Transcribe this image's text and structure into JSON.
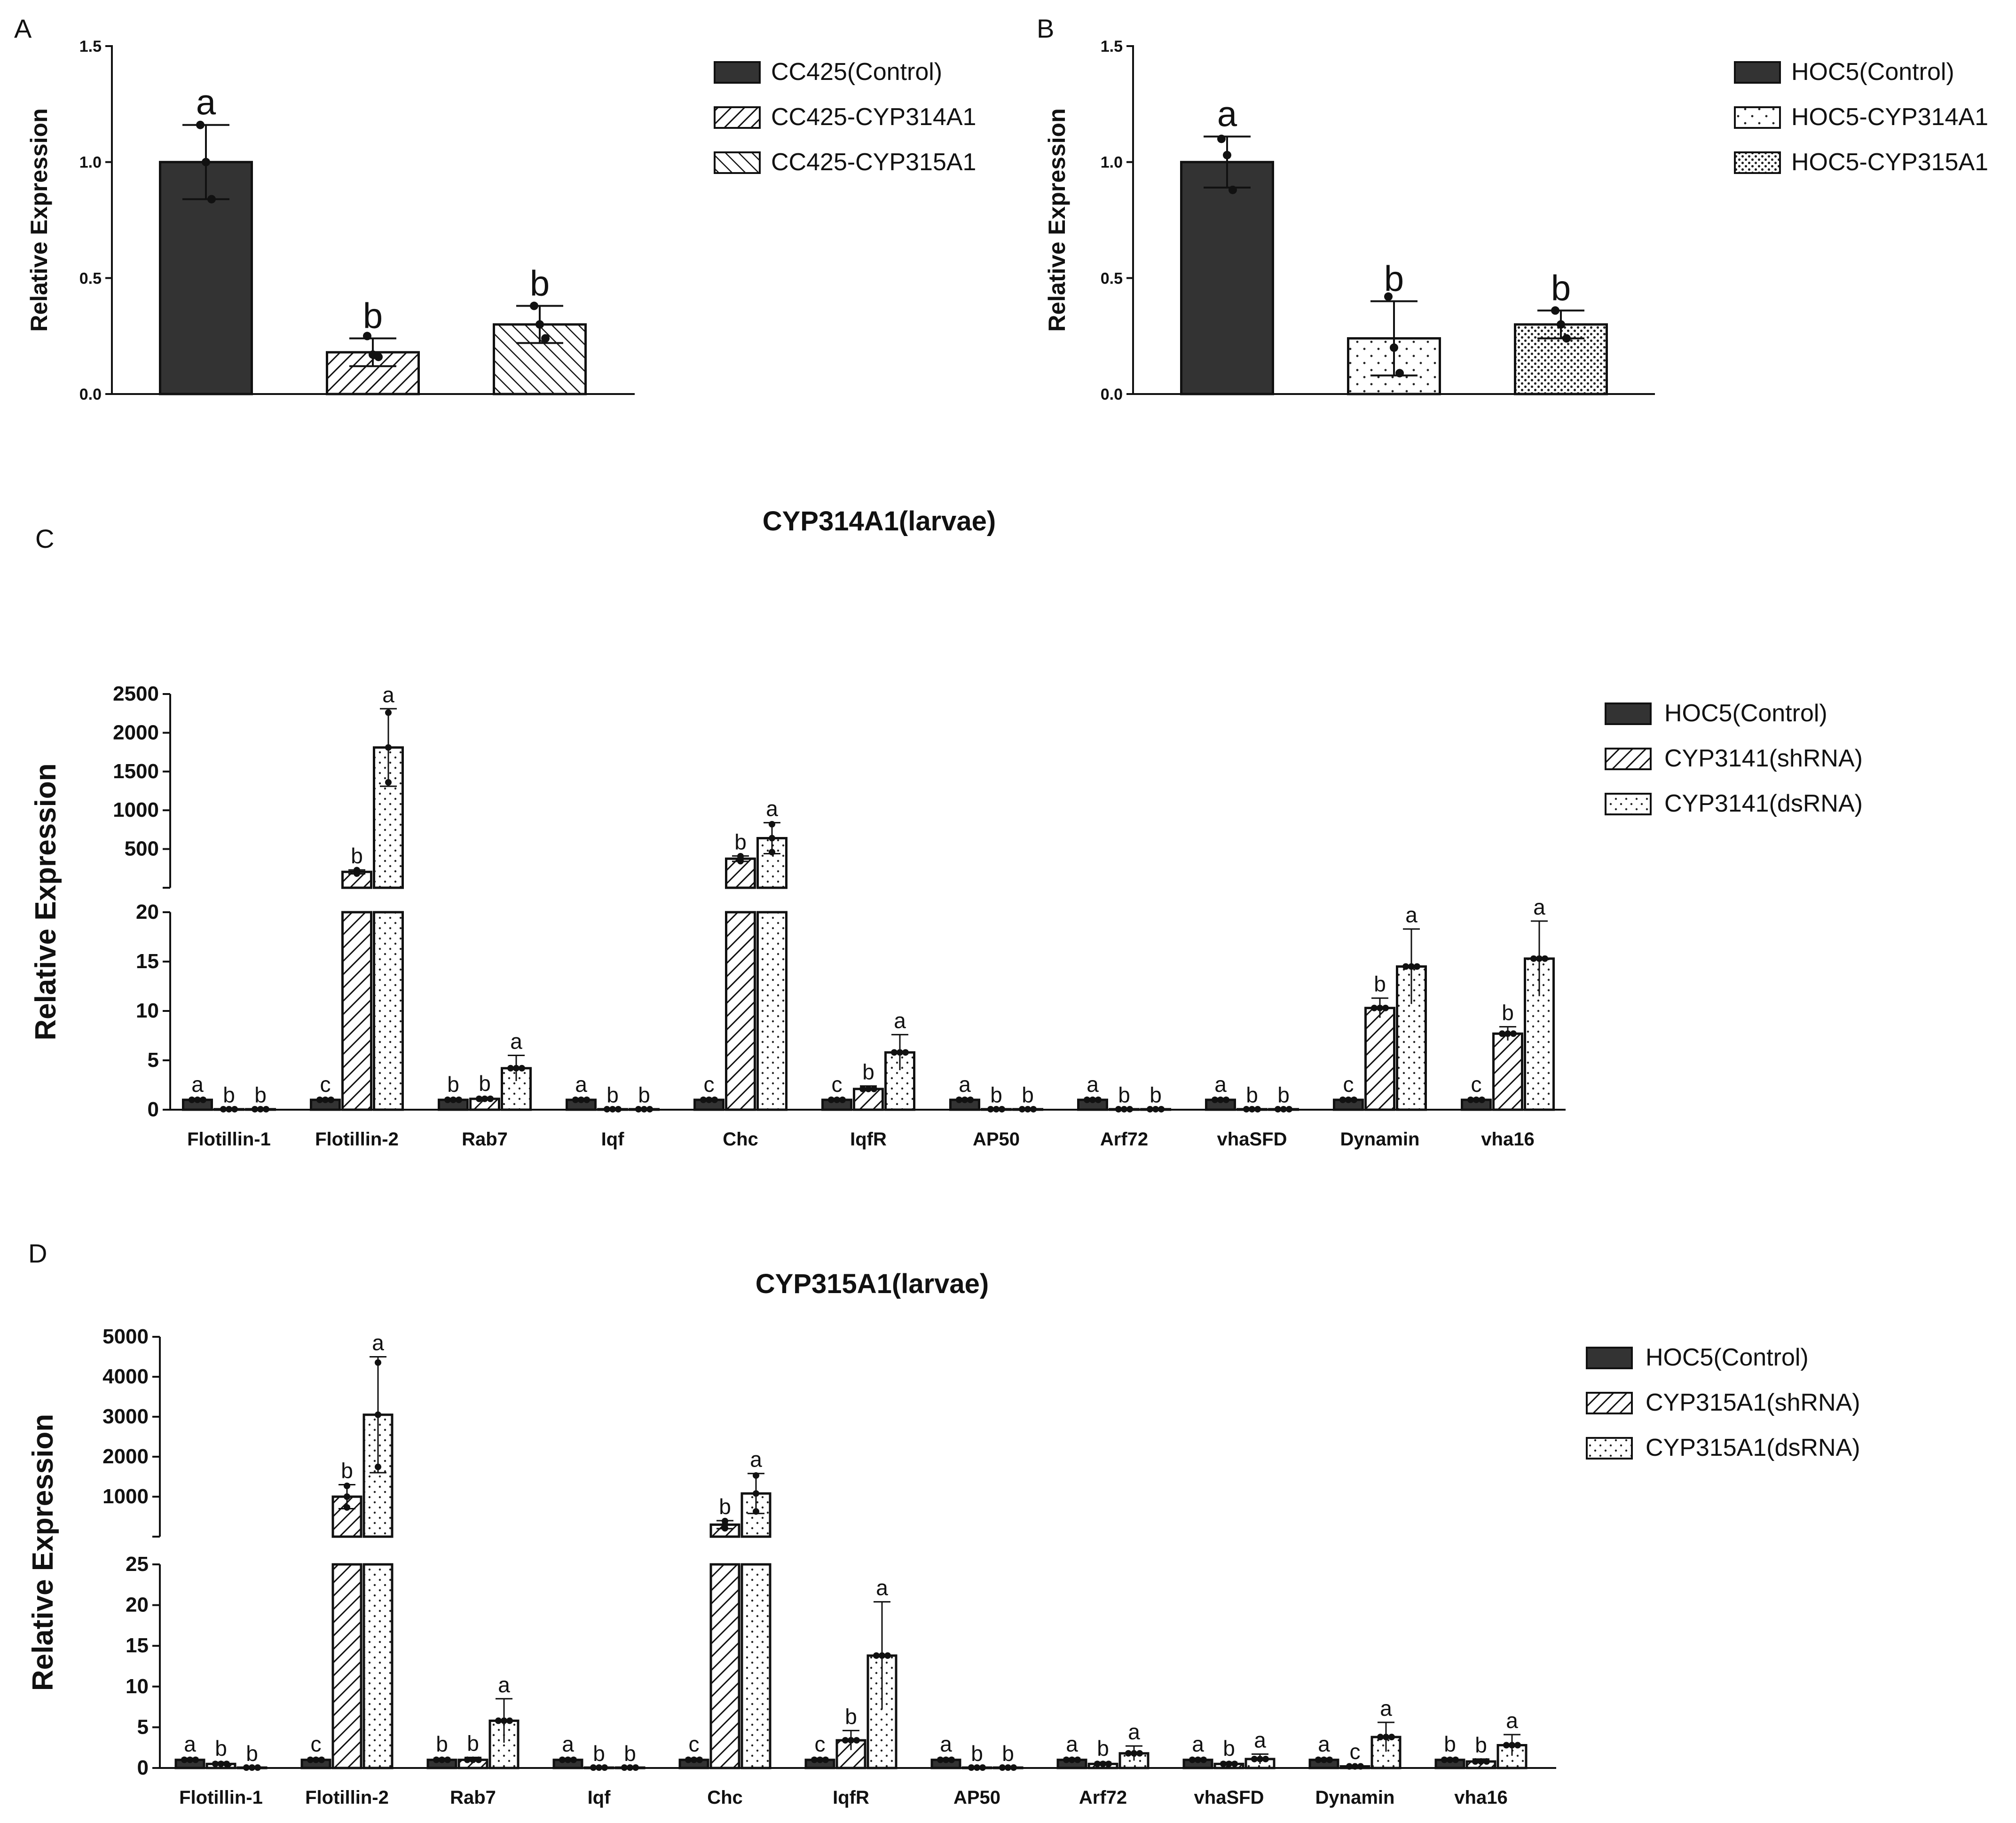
{
  "panels": {
    "a": "A",
    "b": "B",
    "c": "C",
    "d": "D"
  },
  "colors": {
    "dark": "#333333",
    "edge": "#111111",
    "light": "#ffffff"
  },
  "chart_data": [
    {
      "id": "A",
      "type": "bar",
      "title": "",
      "xlabel": "",
      "ylabel": "Relative Expression",
      "ylim": [
        0,
        1.5
      ],
      "yticks": [
        "0.0",
        "0.5",
        "1.0",
        "1.5"
      ],
      "categories": [
        "CC425(Control)",
        "CC425-CYP314A1",
        "CC425-CYP315A1"
      ],
      "legend": [
        "CC425(Control)",
        "CC425-CYP314A1",
        "CC425-CYP315A1"
      ],
      "patterns": [
        "dark",
        "hatch",
        "hatch-rev"
      ],
      "values": [
        1.0,
        0.18,
        0.3
      ],
      "errors": [
        0.16,
        0.06,
        0.08
      ],
      "points": [
        [
          1.16,
          1.0,
          0.84
        ],
        [
          0.25,
          0.17,
          0.16
        ],
        [
          0.38,
          0.3,
          0.24
        ]
      ],
      "letters": [
        "a",
        "b",
        "b"
      ]
    },
    {
      "id": "B",
      "type": "bar",
      "title": "",
      "xlabel": "",
      "ylabel": "Relative Expression",
      "ylim": [
        0,
        1.5
      ],
      "yticks": [
        "0.0",
        "0.5",
        "1.0",
        "1.5"
      ],
      "categories": [
        "HOC5(Control)",
        "HOC5-CYP314A1",
        "HOC5-CYP315A1"
      ],
      "legend": [
        "HOC5(Control)",
        "HOC5-CYP314A1",
        "HOC5-CYP315A1"
      ],
      "patterns": [
        "dark",
        "dots-sparse",
        "dots-dense"
      ],
      "values": [
        1.0,
        0.24,
        0.3
      ],
      "errors": [
        0.11,
        0.16,
        0.06
      ],
      "points": [
        [
          1.1,
          1.03,
          0.88
        ],
        [
          0.42,
          0.2,
          0.09
        ],
        [
          0.36,
          0.3,
          0.24
        ]
      ],
      "letters": [
        "a",
        "b",
        "b"
      ]
    },
    {
      "id": "C",
      "type": "bar",
      "title": "CYP314A1(larvae)",
      "xlabel": "",
      "ylabel": "Relative Expression",
      "lower_ylim": [
        0,
        20
      ],
      "lower_ticks": [
        "0",
        "5",
        "10",
        "15",
        "20"
      ],
      "upper_ylim": [
        0,
        2500
      ],
      "upper_ticks": [
        "500",
        "1000",
        "1500",
        "2000",
        "2500"
      ],
      "categories": [
        "Flotillin-1",
        "Flotillin-2",
        "Rab7",
        "Iqf",
        "Chc",
        "IqfR",
        "AP50",
        "Arf72",
        "vhaSFD",
        "Dynamin",
        "vha16"
      ],
      "series": [
        {
          "name": "HOC5(Control)",
          "pattern": "dark",
          "values": [
            1,
            1,
            1,
            1,
            1,
            1,
            1,
            1,
            1,
            1,
            1
          ],
          "errors": [
            0.15,
            0.15,
            0.15,
            0.15,
            0.15,
            0.15,
            0.15,
            0.15,
            0.15,
            0.15,
            0.15
          ],
          "letters": [
            "a",
            "c",
            "b",
            "a",
            "c",
            "c",
            "a",
            "a",
            "a",
            "c",
            "c"
          ]
        },
        {
          "name": "CYP3141(shRNA)",
          "pattern": "hatch",
          "values": [
            0.05,
            205,
            1.1,
            0.05,
            375,
            2.1,
            0.05,
            0.05,
            0.05,
            10.3,
            7.7
          ],
          "errors": [
            0.02,
            25,
            0.15,
            0.02,
            35,
            0.3,
            0.02,
            0.02,
            0.02,
            1.0,
            0.7
          ],
          "letters": [
            "b",
            "b",
            "b",
            "b",
            "b",
            "b",
            "b",
            "b",
            "b",
            "b",
            "b"
          ]
        },
        {
          "name": "CYP3141(dsRNA)",
          "pattern": "dots",
          "values": [
            0.05,
            1810,
            4.2,
            0.05,
            640,
            5.8,
            0.05,
            0.05,
            0.05,
            14.5,
            15.3
          ],
          "errors": [
            0.02,
            500,
            1.3,
            0.02,
            200,
            1.8,
            0.02,
            0.02,
            0.02,
            3.8,
            3.8
          ],
          "letters": [
            "b",
            "a",
            "a",
            "b",
            "a",
            "a",
            "b",
            "b",
            "b",
            "a",
            "a"
          ]
        }
      ]
    },
    {
      "id": "D",
      "type": "bar",
      "title": "CYP315A1(larvae)",
      "xlabel": "",
      "ylabel": "Relative Expression",
      "lower_ylim": [
        0,
        25
      ],
      "lower_ticks": [
        "0",
        "5",
        "10",
        "15",
        "20",
        "25"
      ],
      "upper_ylim": [
        0,
        5000
      ],
      "upper_ticks": [
        "1000",
        "2000",
        "3000",
        "4000",
        "5000"
      ],
      "categories": [
        "Flotillin-1",
        "Flotillin-2",
        "Rab7",
        "Iqf",
        "Chc",
        "IqfR",
        "AP50",
        "Arf72",
        "vhaSFD",
        "Dynamin",
        "vha16"
      ],
      "series": [
        {
          "name": "HOC5(Control)",
          "pattern": "dark",
          "values": [
            1,
            1,
            1,
            1,
            1,
            1,
            1,
            1,
            1,
            1,
            1
          ],
          "errors": [
            0.2,
            0.2,
            0.2,
            0.2,
            0.2,
            0.2,
            0.2,
            0.2,
            0.2,
            0.2,
            0.2
          ],
          "letters": [
            "a",
            "c",
            "b",
            "a",
            "c",
            "c",
            "a",
            "a",
            "a",
            "a",
            "b"
          ]
        },
        {
          "name": "CYP315A1(shRNA)",
          "pattern": "hatch",
          "values": [
            0.5,
            1000,
            1.0,
            0.05,
            300,
            3.4,
            0.05,
            0.5,
            0.5,
            0.2,
            0.8
          ],
          "errors": [
            0.2,
            300,
            0.3,
            0.02,
            100,
            1.2,
            0.02,
            0.2,
            0.2,
            0.1,
            0.3
          ],
          "letters": [
            "b",
            "b",
            "b",
            "b",
            "b",
            "b",
            "b",
            "b",
            "b",
            "c",
            "b"
          ]
        },
        {
          "name": "CYP315A1(dsRNA)",
          "pattern": "dots",
          "values": [
            0.05,
            3050,
            5.8,
            0.05,
            1080,
            13.8,
            0.05,
            1.8,
            1.1,
            3.8,
            2.8
          ],
          "errors": [
            0.02,
            1450,
            2.7,
            0.02,
            500,
            6.6,
            0.02,
            0.9,
            0.6,
            1.8,
            1.3
          ],
          "letters": [
            "b",
            "a",
            "a",
            "b",
            "a",
            "a",
            "b",
            "a",
            "a",
            "a",
            "a"
          ]
        }
      ]
    }
  ]
}
